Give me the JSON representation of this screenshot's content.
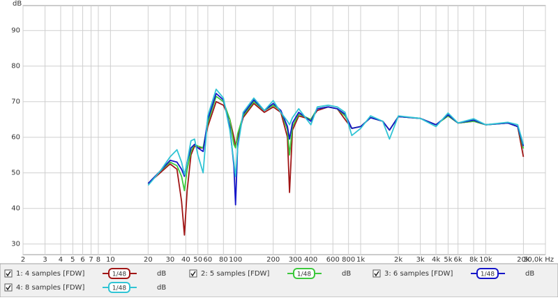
{
  "chart_data": {
    "type": "line",
    "ylabel": "dB",
    "log_x": true,
    "grid": true,
    "xlim": [
      2,
      30000
    ],
    "ylim": [
      27,
      97
    ],
    "xticks": [
      2,
      3,
      4,
      5,
      6,
      7,
      8,
      10,
      20,
      30,
      40,
      50,
      60,
      80,
      100,
      200,
      300,
      400,
      600,
      800,
      {
        "value": 1000,
        "label": "1k"
      },
      {
        "value": 2000,
        "label": "2k"
      },
      {
        "value": 3000,
        "label": "3k"
      },
      {
        "value": 4000,
        "label": "4k"
      },
      {
        "value": 5000,
        "label": "5k"
      },
      {
        "value": 6000,
        "label": "6k"
      },
      {
        "value": 8000,
        "label": "8k"
      },
      {
        "value": 10000,
        "label": "10k"
      },
      {
        "value": 20000,
        "label": "20k"
      },
      {
        "value": 30000,
        "label": "30,0k Hz"
      }
    ],
    "yticks": [
      30,
      40,
      50,
      60,
      70,
      80,
      90
    ],
    "x": [
      20,
      25,
      30,
      34,
      37,
      39,
      41,
      44,
      47,
      50,
      55,
      60,
      70,
      80,
      90,
      97,
      100,
      104,
      115,
      140,
      170,
      200,
      230,
      260,
      270,
      285,
      320,
      400,
      450,
      550,
      650,
      750,
      850,
      1000,
      1200,
      1500,
      1700,
      2000,
      3000,
      4000,
      5000,
      6000,
      8000,
      10000,
      15000,
      18000,
      20000
    ],
    "series": [
      {
        "name": "1: 4 samples [FDW]",
        "color": "#a01515",
        "smoothing": "1/48",
        "unit": "dB",
        "values": [
          47,
          50,
          52.5,
          51,
          42,
          32.5,
          45,
          55,
          57.5,
          57,
          57,
          63,
          70,
          69,
          65,
          60,
          57.5,
          60,
          65.5,
          69.5,
          67,
          68.5,
          67,
          60,
          44.5,
          62,
          66,
          65,
          67.5,
          68.5,
          68,
          65,
          62.5,
          63,
          65.5,
          64.5,
          62,
          65.8,
          65.3,
          63.5,
          66,
          64,
          64.5,
          63.5,
          64,
          63,
          54.5
        ]
      },
      {
        "name": "2: 5 samples [FDW]",
        "color": "#3cc83c",
        "smoothing": "1/48",
        "unit": "dB",
        "values": [
          47,
          50.5,
          53,
          52,
          49,
          45,
          51,
          56,
          58,
          57.5,
          57,
          64,
          71.5,
          70,
          65,
          58,
          57,
          61,
          66,
          70,
          67.5,
          69,
          67.5,
          62,
          55,
          63,
          66.5,
          65,
          68,
          68.5,
          68,
          66,
          62.5,
          63,
          65.5,
          64.5,
          62,
          65.8,
          65.3,
          63.5,
          66,
          64,
          64.5,
          63.5,
          64,
          63,
          56.8
        ]
      },
      {
        "name": "3: 6 samples [FDW]",
        "color": "#1515c8",
        "smoothing": "1/48",
        "unit": "dB",
        "values": [
          47,
          50.5,
          53.5,
          53,
          51,
          49,
          53,
          57,
          58,
          57,
          56,
          65,
          72.3,
          70.5,
          63,
          52,
          41,
          58,
          66.5,
          70.5,
          67.5,
          69.5,
          67.5,
          63,
          59.5,
          64,
          67,
          64.5,
          68,
          68.5,
          68,
          66.5,
          62.5,
          63,
          65.5,
          64.5,
          62,
          65.8,
          65.3,
          63.5,
          66.3,
          64,
          64.8,
          63.5,
          64,
          63,
          57.5
        ]
      },
      {
        "name": "4: 8 samples [FDW]",
        "color": "#30c4d4",
        "smoothing": "1/48",
        "unit": "dB",
        "values": [
          46.5,
          50.5,
          54.5,
          56.5,
          53,
          49.5,
          53,
          59,
          59.5,
          55,
          50,
          66,
          73.5,
          71,
          62,
          53,
          49,
          57,
          67,
          71,
          67.5,
          70.3,
          67,
          64.5,
          63.5,
          65.5,
          68,
          63.5,
          68.5,
          69,
          68.5,
          67,
          60.5,
          62.5,
          66,
          64.5,
          59.5,
          66,
          65.3,
          63,
          66.8,
          64,
          65.2,
          63.5,
          64.2,
          63.5,
          58
        ]
      }
    ]
  }
}
